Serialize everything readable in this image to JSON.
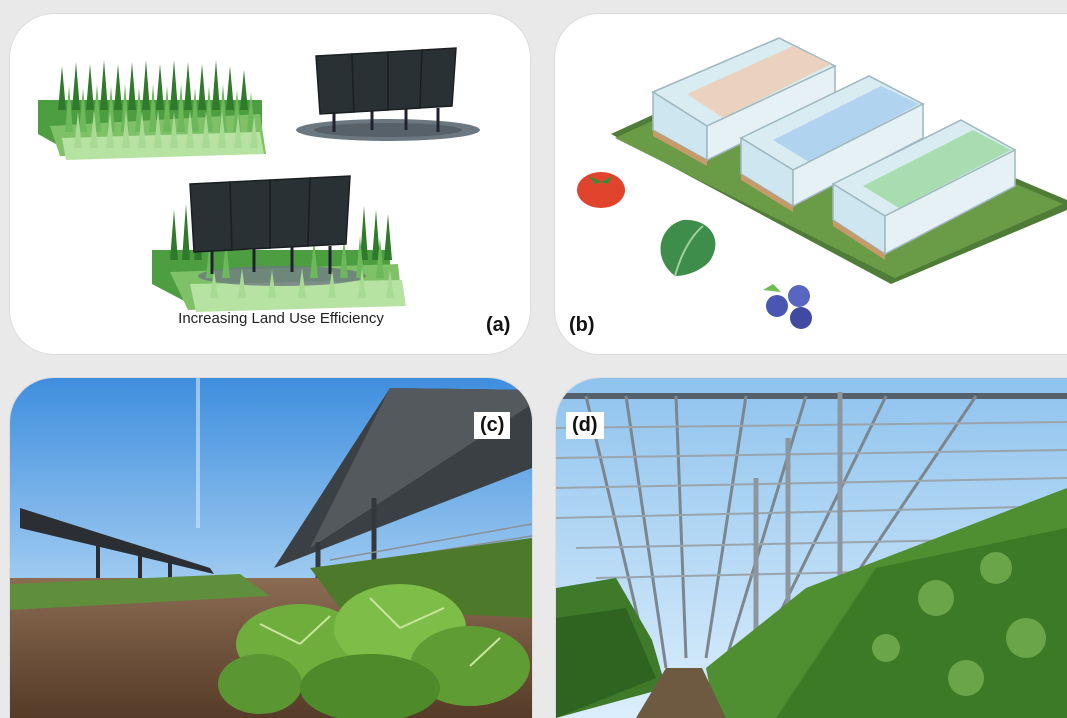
{
  "panels": {
    "a": {
      "label": "(a)",
      "caption": "Increasing Land Use Efficiency"
    },
    "b": {
      "label": "(b)",
      "icons": [
        "tomato-icon",
        "spinach-leaf-icon",
        "blueberry-icon"
      ]
    },
    "c": {
      "label": "(c)"
    },
    "d": {
      "label": "(d)"
    }
  },
  "colors": {
    "solar_panel": "#2a3134",
    "crop_dark": "#3e8f3a",
    "crop_light": "#a9dc93",
    "sky": "#4fa2e8",
    "soil": "#6a4a34"
  }
}
